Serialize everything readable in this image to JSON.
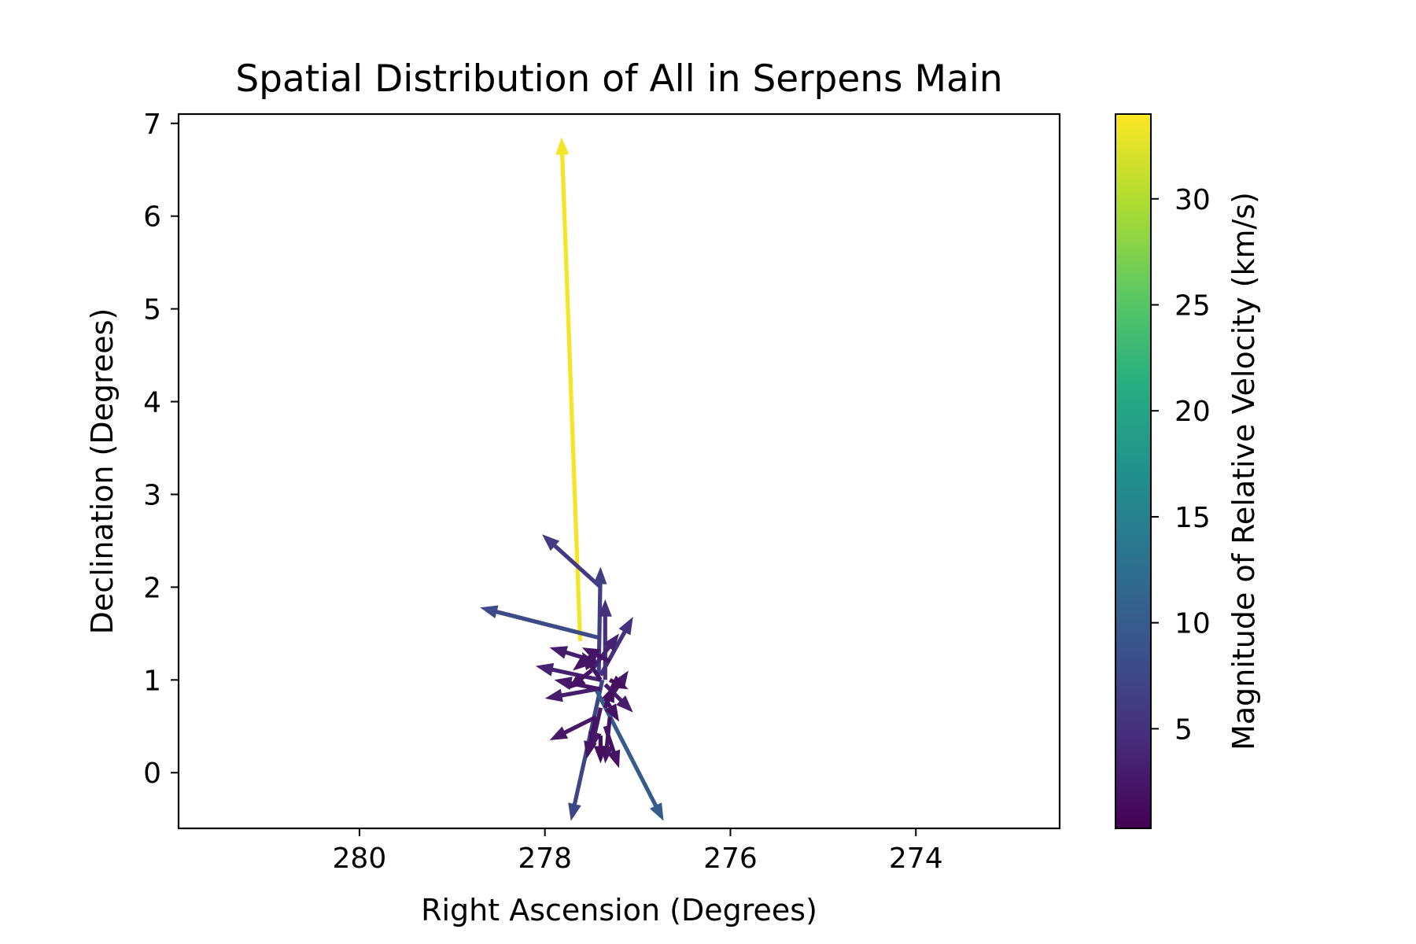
{
  "chart_data": {
    "type": "quiver",
    "title": "Spatial Distribution of All in Serpens Main",
    "xlabel": "Right Ascension (Degrees)",
    "ylabel": "Declination (Degrees)",
    "xlim": [
      281.95,
      272.45
    ],
    "ylim": [
      -0.6,
      7.1
    ],
    "x_inverted": true,
    "x_ticks": [
      280,
      278,
      276,
      274
    ],
    "y_ticks": [
      0,
      1,
      2,
      3,
      4,
      5,
      6,
      7
    ],
    "grid": false,
    "colorbar": {
      "label": "Magnitude of Relative Velocity (km/s)",
      "colormap": "viridis",
      "range": [
        0.3,
        34
      ],
      "ticks": [
        5,
        10,
        15,
        20,
        25,
        30
      ]
    },
    "vectors": [
      {
        "x": 277.62,
        "y": 1.42,
        "x_end": 277.82,
        "y_end": 6.85,
        "v": 33.5
      },
      {
        "x": 277.4,
        "y": 1.45,
        "x_end": 278.7,
        "y_end": 1.78,
        "v": 8.0
      },
      {
        "x": 277.4,
        "y": 2.0,
        "x_end": 278.03,
        "y_end": 2.57,
        "v": 6.0
      },
      {
        "x": 277.38,
        "y": 1.0,
        "x_end": 277.72,
        "y_end": -0.52,
        "v": 7.5
      },
      {
        "x": 277.45,
        "y": 0.9,
        "x_end": 276.72,
        "y_end": -0.52,
        "v": 10.0
      },
      {
        "x": 277.42,
        "y": 1.05,
        "x_end": 277.4,
        "y_end": 2.22,
        "v": 6.5
      },
      {
        "x": 277.35,
        "y": 1.0,
        "x_end": 277.35,
        "y_end": 1.87,
        "v": 5.0
      },
      {
        "x": 277.4,
        "y": 1.05,
        "x_end": 277.05,
        "y_end": 1.68,
        "v": 5.0
      },
      {
        "x": 277.5,
        "y": 1.1,
        "x_end": 277.2,
        "y_end": 1.5,
        "v": 3.5
      },
      {
        "x": 277.45,
        "y": 1.2,
        "x_end": 277.95,
        "y_end": 1.35,
        "v": 3.0
      },
      {
        "x": 277.4,
        "y": 1.0,
        "x_end": 278.1,
        "y_end": 1.15,
        "v": 3.5
      },
      {
        "x": 277.45,
        "y": 0.9,
        "x_end": 278.0,
        "y_end": 0.8,
        "v": 3.0
      },
      {
        "x": 277.45,
        "y": 0.6,
        "x_end": 277.95,
        "y_end": 0.35,
        "v": 2.5
      },
      {
        "x": 277.4,
        "y": 0.9,
        "x_end": 277.9,
        "y_end": 1.0,
        "v": 2.5
      },
      {
        "x": 277.3,
        "y": 0.8,
        "x_end": 277.1,
        "y_end": 1.1,
        "v": 2.5
      },
      {
        "x": 277.35,
        "y": 0.95,
        "x_end": 277.05,
        "y_end": 0.65,
        "v": 3.0
      },
      {
        "x": 277.35,
        "y": 0.8,
        "x_end": 277.2,
        "y_end": 0.55,
        "v": 2.0
      },
      {
        "x": 277.4,
        "y": 0.7,
        "x_end": 277.5,
        "y_end": 0.25,
        "v": 2.5
      },
      {
        "x": 277.45,
        "y": 0.6,
        "x_end": 277.55,
        "y_end": 0.15,
        "v": 2.0
      },
      {
        "x": 277.35,
        "y": 0.5,
        "x_end": 277.2,
        "y_end": 0.05,
        "v": 2.0
      },
      {
        "x": 277.3,
        "y": 0.6,
        "x_end": 277.35,
        "y_end": 0.1,
        "v": 2.0
      },
      {
        "x": 277.5,
        "y": 1.1,
        "x_end": 277.75,
        "y_end": 0.9,
        "v": 2.0
      },
      {
        "x": 277.4,
        "y": 1.0,
        "x_end": 277.6,
        "y_end": 1.3,
        "v": 2.0
      },
      {
        "x": 277.3,
        "y": 1.0,
        "x_end": 277.1,
        "y_end": 0.9,
        "v": 1.5
      },
      {
        "x": 277.35,
        "y": 0.7,
        "x_end": 277.25,
        "y_end": 0.95,
        "v": 1.5
      },
      {
        "x": 277.4,
        "y": 0.4,
        "x_end": 277.4,
        "y_end": 0.1,
        "v": 1.5
      },
      {
        "x": 277.3,
        "y": 1.2,
        "x_end": 277.6,
        "y_end": 1.35,
        "v": 2.0
      },
      {
        "x": 277.45,
        "y": 1.3,
        "x_end": 277.7,
        "y_end": 1.1,
        "v": 2.0
      }
    ]
  }
}
